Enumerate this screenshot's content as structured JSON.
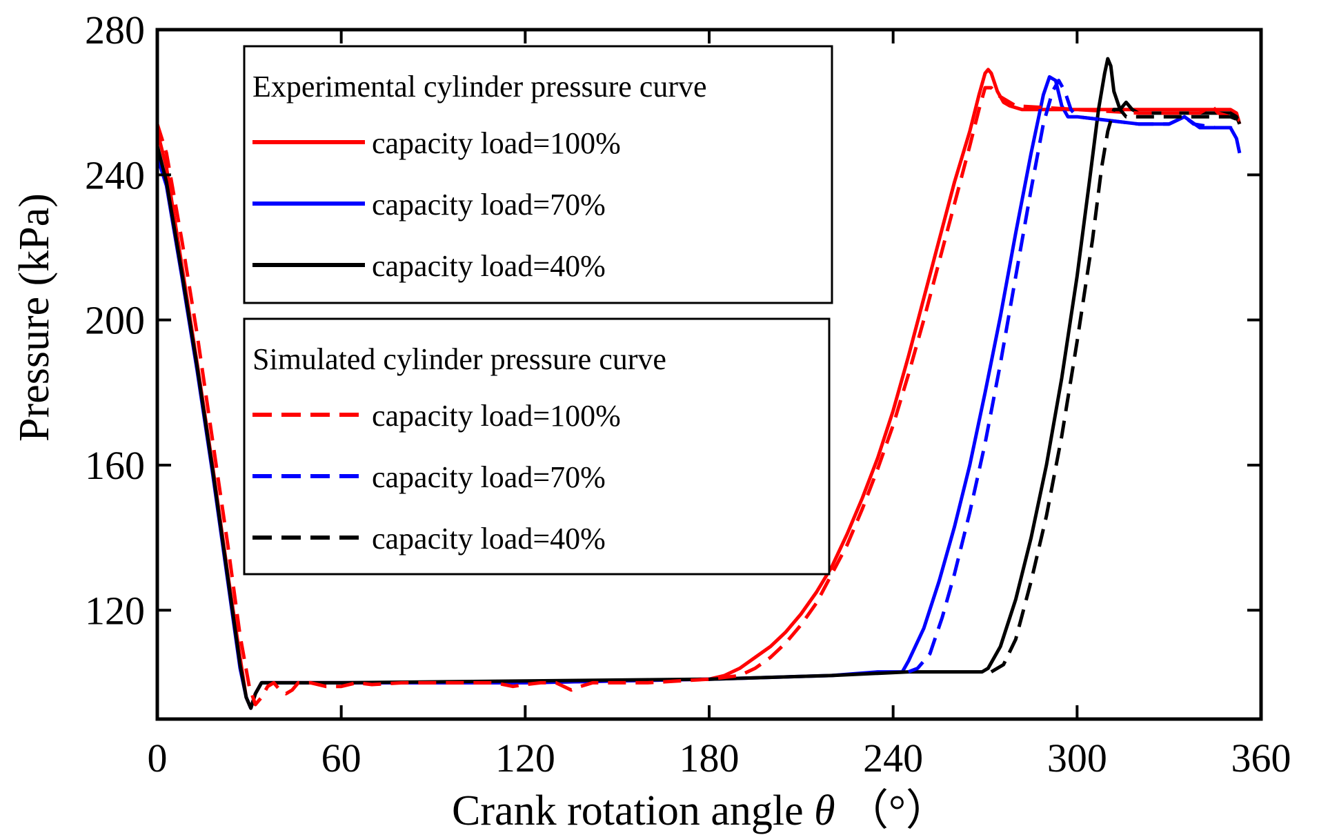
{
  "chart_data": {
    "type": "line",
    "xlabel": "Crank rotation angle",
    "xlabel_symbol": "θ",
    "xlabel_unit": "（°）",
    "ylabel": "Pressure (kPa)",
    "xlim": [
      0,
      360
    ],
    "ylim": [
      90,
      280
    ],
    "xticks": [
      0,
      60,
      120,
      180,
      240,
      300,
      360
    ],
    "yticks": [
      120,
      160,
      200,
      240,
      280
    ],
    "grid": false,
    "legend": {
      "placement": "top-left (inside)",
      "groups": [
        {
          "title": "Experimental cylinder pressure curve",
          "entries": [
            "capacity load=100%",
            "capacity load=70%",
            "capacity load=40%"
          ]
        },
        {
          "title": "Simulated  cylinder  pressure   curve",
          "entries": [
            "capacity load=100%",
            "capacity load=70%",
            "capacity load=40%"
          ]
        }
      ]
    },
    "series": [
      {
        "name": "Experimental capacity load=100%",
        "color": "#ff0000",
        "dash": "solid",
        "points": [
          [
            0,
            252
          ],
          [
            3,
            242
          ],
          [
            8,
            215
          ],
          [
            13,
            188
          ],
          [
            18,
            160
          ],
          [
            23,
            130
          ],
          [
            27,
            107
          ],
          [
            29,
            96
          ],
          [
            30.5,
            93
          ],
          [
            32,
            97
          ],
          [
            34,
            100
          ],
          [
            40,
            100
          ],
          [
            60,
            100
          ],
          [
            90,
            100
          ],
          [
            120,
            100
          ],
          [
            150,
            100.5
          ],
          [
            180,
            101
          ],
          [
            185,
            102
          ],
          [
            190,
            104
          ],
          [
            195,
            107
          ],
          [
            200,
            110
          ],
          [
            205,
            114
          ],
          [
            210,
            119
          ],
          [
            215,
            125
          ],
          [
            220,
            132
          ],
          [
            225,
            141
          ],
          [
            230,
            151
          ],
          [
            235,
            162
          ],
          [
            240,
            175
          ],
          [
            245,
            190
          ],
          [
            250,
            206
          ],
          [
            255,
            222
          ],
          [
            260,
            238
          ],
          [
            265,
            252
          ],
          [
            268,
            262
          ],
          [
            270,
            268
          ],
          [
            271,
            269
          ],
          [
            272,
            268
          ],
          [
            274,
            263
          ],
          [
            276,
            260
          ],
          [
            278,
            259
          ],
          [
            282,
            258
          ],
          [
            300,
            258
          ],
          [
            320,
            258
          ],
          [
            340,
            258
          ],
          [
            350,
            258
          ],
          [
            352,
            257
          ],
          [
            353,
            254
          ]
        ]
      },
      {
        "name": "Experimental capacity load=70%",
        "color": "#0000ff",
        "dash": "solid",
        "points": [
          [
            0,
            245
          ],
          [
            3,
            237
          ],
          [
            8,
            212
          ],
          [
            13,
            186
          ],
          [
            18,
            158
          ],
          [
            23,
            128
          ],
          [
            27,
            104
          ],
          [
            29,
            96
          ],
          [
            30.5,
            93
          ],
          [
            32,
            97
          ],
          [
            34,
            100
          ],
          [
            60,
            100
          ],
          [
            120,
            100
          ],
          [
            180,
            101
          ],
          [
            220,
            102
          ],
          [
            235,
            103
          ],
          [
            240,
            103
          ],
          [
            243,
            103
          ],
          [
            245,
            106
          ],
          [
            250,
            115
          ],
          [
            255,
            128
          ],
          [
            260,
            143
          ],
          [
            265,
            160
          ],
          [
            270,
            180
          ],
          [
            275,
            201
          ],
          [
            280,
            224
          ],
          [
            285,
            246
          ],
          [
            289,
            262
          ],
          [
            291,
            267
          ],
          [
            293,
            266
          ],
          [
            295,
            259
          ],
          [
            297,
            256
          ],
          [
            300,
            256
          ],
          [
            310,
            255
          ],
          [
            320,
            254
          ],
          [
            330,
            254
          ],
          [
            335,
            256
          ],
          [
            340,
            253
          ],
          [
            350,
            253
          ],
          [
            352,
            250
          ],
          [
            353,
            246
          ]
        ]
      },
      {
        "name": "Experimental capacity load=40%",
        "color": "#000000",
        "dash": "solid",
        "points": [
          [
            0,
            248
          ],
          [
            3,
            238
          ],
          [
            8,
            213
          ],
          [
            13,
            187
          ],
          [
            18,
            159
          ],
          [
            23,
            129
          ],
          [
            27,
            105
          ],
          [
            29,
            96
          ],
          [
            30.5,
            93
          ],
          [
            32,
            97
          ],
          [
            34,
            100
          ],
          [
            60,
            100
          ],
          [
            120,
            100.5
          ],
          [
            180,
            101
          ],
          [
            220,
            102
          ],
          [
            245,
            103
          ],
          [
            265,
            103
          ],
          [
            269,
            103
          ],
          [
            271,
            104
          ],
          [
            275,
            110
          ],
          [
            280,
            123
          ],
          [
            285,
            140
          ],
          [
            290,
            160
          ],
          [
            295,
            184
          ],
          [
            300,
            212
          ],
          [
            304,
            238
          ],
          [
            307,
            258
          ],
          [
            309,
            268
          ],
          [
            310,
            272
          ],
          [
            311,
            270
          ],
          [
            312,
            263
          ],
          [
            314,
            258
          ],
          [
            316,
            260
          ],
          [
            318,
            258
          ],
          [
            320,
            257
          ],
          [
            325,
            257
          ],
          [
            330,
            257
          ],
          [
            335,
            257
          ],
          [
            340,
            257
          ],
          [
            345,
            257
          ],
          [
            350,
            257
          ],
          [
            352,
            256
          ],
          [
            353,
            254
          ]
        ]
      },
      {
        "name": "Simulated capacity load=100%",
        "color": "#ff0000",
        "dash": "dashed",
        "points": [
          [
            0,
            254
          ],
          [
            3,
            246
          ],
          [
            8,
            222
          ],
          [
            13,
            196
          ],
          [
            18,
            167
          ],
          [
            23,
            138
          ],
          [
            27,
            113
          ],
          [
            30,
            99
          ],
          [
            32,
            94
          ],
          [
            34,
            96
          ],
          [
            36,
            99
          ],
          [
            38,
            100
          ],
          [
            40,
            98
          ],
          [
            42,
            97
          ],
          [
            44,
            98
          ],
          [
            46,
            100
          ],
          [
            50,
            100
          ],
          [
            55,
            99
          ],
          [
            60,
            99
          ],
          [
            65,
            100
          ],
          [
            70,
            99.5
          ],
          [
            80,
            100
          ],
          [
            90,
            100
          ],
          [
            100,
            100
          ],
          [
            110,
            100
          ],
          [
            116,
            99
          ],
          [
            120,
            99.5
          ],
          [
            125,
            100
          ],
          [
            130,
            100
          ],
          [
            135,
            98
          ],
          [
            138,
            99
          ],
          [
            142,
            100
          ],
          [
            150,
            100
          ],
          [
            160,
            100
          ],
          [
            170,
            100.5
          ],
          [
            180,
            101
          ],
          [
            190,
            102
          ],
          [
            195,
            104
          ],
          [
            200,
            107
          ],
          [
            205,
            111
          ],
          [
            210,
            116
          ],
          [
            215,
            122
          ],
          [
            220,
            130
          ],
          [
            225,
            138
          ],
          [
            230,
            148
          ],
          [
            235,
            159
          ],
          [
            240,
            171
          ],
          [
            245,
            185
          ],
          [
            250,
            200
          ],
          [
            255,
            216
          ],
          [
            260,
            232
          ],
          [
            265,
            248
          ],
          [
            268,
            258
          ],
          [
            270,
            264
          ],
          [
            272,
            264
          ],
          [
            274,
            262
          ],
          [
            280,
            259
          ],
          [
            300,
            258
          ],
          [
            320,
            257
          ],
          [
            340,
            257
          ],
          [
            344,
            259
          ],
          [
            346,
            257
          ],
          [
            350,
            256
          ],
          [
            353,
            255
          ]
        ]
      },
      {
        "name": "Simulated capacity load=70%",
        "color": "#0000ff",
        "dash": "dashed",
        "points": [
          [
            245,
            103
          ],
          [
            248,
            104
          ],
          [
            252,
            108
          ],
          [
            256,
            118
          ],
          [
            260,
            130
          ],
          [
            265,
            147
          ],
          [
            270,
            166
          ],
          [
            275,
            188
          ],
          [
            280,
            212
          ],
          [
            285,
            236
          ],
          [
            289,
            254
          ],
          [
            292,
            263
          ],
          [
            294,
            266
          ],
          [
            296,
            263
          ],
          [
            298,
            258
          ],
          [
            300,
            256
          ],
          [
            310,
            255
          ],
          [
            320,
            254
          ],
          [
            330,
            254
          ],
          [
            335,
            256
          ],
          [
            338,
            254
          ],
          [
            345,
            253
          ],
          [
            350,
            253
          ],
          [
            353,
            252
          ]
        ]
      },
      {
        "name": "Simulated capacity load=40%",
        "color": "#000000",
        "dash": "dashed",
        "points": [
          [
            272,
            103
          ],
          [
            276,
            105
          ],
          [
            280,
            112
          ],
          [
            285,
            128
          ],
          [
            290,
            146
          ],
          [
            295,
            168
          ],
          [
            300,
            194
          ],
          [
            305,
            222
          ],
          [
            308,
            242
          ],
          [
            310,
            252
          ],
          [
            312,
            258
          ],
          [
            314,
            258
          ],
          [
            316,
            256
          ],
          [
            320,
            256
          ],
          [
            325,
            256
          ],
          [
            330,
            256
          ],
          [
            335,
            256
          ],
          [
            340,
            256
          ],
          [
            345,
            256
          ],
          [
            350,
            256
          ],
          [
            353,
            255
          ]
        ]
      }
    ]
  }
}
